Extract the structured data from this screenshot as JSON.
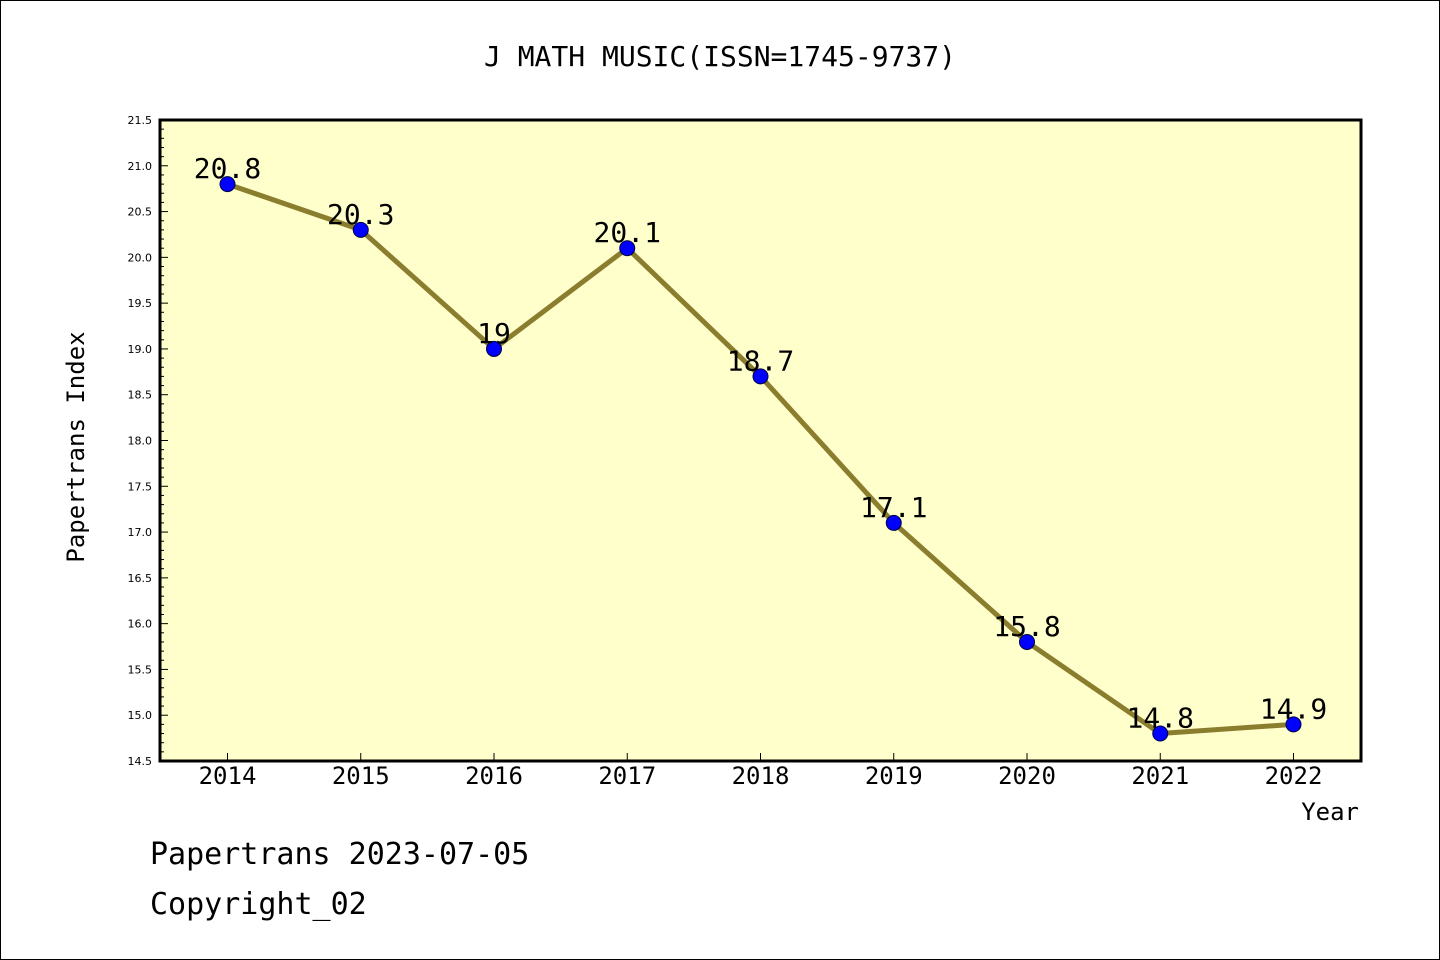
{
  "chart_data": {
    "type": "line",
    "title": "J MATH MUSIC(ISSN=1745-9737)",
    "xlabel": "Year",
    "ylabel": "Papertrans Index",
    "categories": [
      "2014",
      "2015",
      "2016",
      "2017",
      "2018",
      "2019",
      "2020",
      "2021",
      "2022"
    ],
    "series": [
      {
        "values": [
          20.8,
          20.3,
          19,
          20.1,
          18.7,
          17.1,
          15.8,
          14.8,
          14.9
        ],
        "labels": [
          "20.8",
          "20.3",
          "19",
          "20.1",
          "18.7",
          "17.1",
          "15.8",
          "14.8",
          "14.9"
        ]
      }
    ],
    "ylim": [
      14.5,
      21.5
    ],
    "yticks": [
      "14.5",
      "15.0",
      "15.5",
      "16.0",
      "16.5",
      "17.0",
      "17.5",
      "18.0",
      "18.5",
      "19.0",
      "19.5",
      "20.0",
      "20.5",
      "21.0",
      "21.5"
    ],
    "grid": false,
    "colors": {
      "plot_background": "#ffffcc",
      "line": "#8b7d2e",
      "marker": "#0000ff"
    }
  },
  "footer": {
    "line1": "Papertrans 2023-07-05",
    "line2": "Copyright_02"
  }
}
